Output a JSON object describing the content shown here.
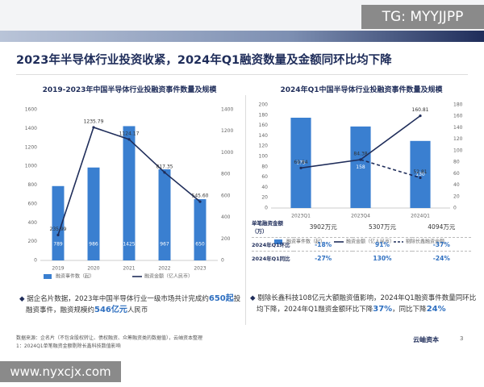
{
  "watermark_top": "TG: MYYJJPP",
  "watermark_bottom": "www.nyxcjx.com",
  "header": {
    "title": "2023年半导体行业投资收紧，2024年Q1融资数量及金额同环比均下降"
  },
  "chart_data": [
    {
      "type": "bar",
      "title": "2019-2023年中国半导体行业投融资事件数量及规模",
      "categories": [
        "2019",
        "2020",
        "2021",
        "2022",
        "2023"
      ],
      "ylim": [
        0,
        1600
      ],
      "yticks": [
        0,
        200,
        400,
        600,
        800,
        1000,
        1200,
        1400,
        1600
      ],
      "y2lim": [
        0,
        1400
      ],
      "y2ticks": [
        0,
        200,
        400,
        600,
        800,
        1000,
        1200,
        1400
      ],
      "series": [
        {
          "name": "融资事件数（起）",
          "color": "#3a7fd0",
          "values": [
            789,
            986,
            1425,
            967,
            650
          ]
        },
        {
          "name": "融资金额（亿人民币）",
          "color": "#1f2d5a",
          "type": "line",
          "axis": "y2",
          "values": [
            235.99,
            1235.79,
            1124.17,
            817.35,
            545.6
          ],
          "value_labels": [
            "235.99",
            "1235.79",
            "1124.17",
            "817.35",
            "545.60"
          ]
        }
      ]
    },
    {
      "type": "bar",
      "title": "2024年Q1中国半导体行业投融资事件数量及规模",
      "categories": [
        "2023Q1",
        "2023Q4",
        "2024Q1"
      ],
      "ylim": [
        0,
        200
      ],
      "yticks": [
        0,
        20,
        40,
        60,
        80,
        100,
        120,
        140,
        160,
        180,
        200
      ],
      "y2lim": [
        0,
        180
      ],
      "y2ticks": [
        0,
        20,
        40,
        60,
        80,
        100,
        120,
        140,
        160,
        180
      ],
      "series": [
        {
          "name": "融资事件数（起）",
          "color": "#3a7fd0",
          "values": [
            175,
            158,
            130
          ]
        },
        {
          "name": "融资金额（亿人民币）",
          "color": "#1f2d5a",
          "type": "line",
          "axis": "y2",
          "values": [
            69.84,
            84.38,
            160.81
          ]
        },
        {
          "name": "剔除长鑫融资金额",
          "color": "#1f2d5a",
          "type": "line",
          "axis": "y2",
          "line_style": "dashed",
          "values": [
            null,
            84.38,
            52.81
          ]
        }
      ],
      "table": {
        "rows": [
          {
            "label": "单笔融资金额（万）",
            "cells": [
              "3902万元",
              "5307万元",
              "4094万元"
            ]
          },
          {
            "label": "2024年Q1环比",
            "cells": [
              "-18%",
              "91%",
              "-37%"
            ]
          },
          {
            "label": "2024年Q1同比",
            "cells": [
              "-27%",
              "130%",
              "-24%"
            ]
          }
        ]
      }
    }
  ],
  "bullets": [
    {
      "segments": [
        {
          "text": "据企名片数据，2023年中国半导体行业一级市场共计完成约"
        },
        {
          "text": "650起",
          "emph": true
        },
        {
          "text": "投融资事件，融资规模约"
        },
        {
          "text": "546亿元",
          "emph": true
        },
        {
          "text": "人民币"
        }
      ]
    },
    {
      "segments": [
        {
          "text": "剔除长鑫科技108亿元大额融资值影响，2024年Q1融资事件数量同环比均下降，2024年Q1融资金额环比下降"
        },
        {
          "text": "37%",
          "emph": true
        },
        {
          "text": "，同比下降"
        },
        {
          "text": "24%",
          "emph": true
        }
      ]
    }
  ],
  "footer": {
    "source": "数据来源：企名片（不包含股权转让、债权融资、众筹融资类的数据值），云岫资本整理",
    "note": "1：2024Q1单笔融资金额剔除长鑫科技数值影响",
    "logo": "云岫资本",
    "page": "3"
  }
}
